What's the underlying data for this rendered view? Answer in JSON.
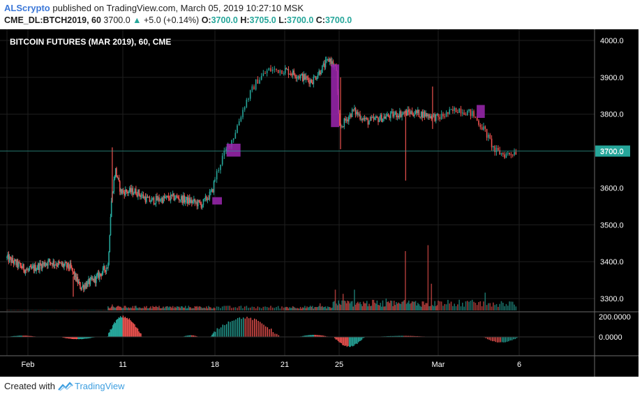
{
  "header": {
    "author": "ALScrypto",
    "published_text": "published on TradingView.com, March 05, 2019 10:27:10 MSK",
    "symbol": "CME_DL:BTCH2019, 60",
    "last": "3700.0",
    "change_arrow": "▲",
    "change": "+5.0 (+0.14%)",
    "o_label": "O:",
    "o": "3700.0",
    "h_label": "H:",
    "h": "3705.0",
    "l_label": "L:",
    "l": "3700.0",
    "c_label": "C:",
    "c": "3700.0"
  },
  "footer": {
    "created_with": "Created with",
    "brand": "TradingView"
  },
  "colors": {
    "background": "#000000",
    "grid": "#1f1f1f",
    "up": "#26a69a",
    "down": "#ef5350",
    "box": "#9c27b0",
    "last_price": "#26a69a",
    "text": "#ffffff"
  },
  "chart_data": {
    "type": "candlestick",
    "title": "BITCOIN FUTURES (MAR 2019), 60, CME",
    "x_tick_labels": [
      "Feb",
      "11",
      "18",
      "21",
      "25",
      "Mar",
      "6"
    ],
    "y_tick_labels": [
      "4000.0",
      "3900.0",
      "3800.0",
      "3700.0",
      "3600.0",
      "3500.0",
      "3400.0",
      "3300.0"
    ],
    "ylim": [
      3270,
      4020
    ],
    "last_price_label": "3700.0",
    "price_path": [
      {
        "x": 0.0,
        "y": 3410
      },
      {
        "x": 2.0,
        "y": 3375
      },
      {
        "x": 4.0,
        "y": 3400
      },
      {
        "x": 6.0,
        "y": 3385
      },
      {
        "x": 7.0,
        "y": 3330
      },
      {
        "x": 8.5,
        "y": 3355
      },
      {
        "x": 9.6,
        "y": 3390
      },
      {
        "x": 9.9,
        "y": 3560
      },
      {
        "x": 10.3,
        "y": 3650
      },
      {
        "x": 10.8,
        "y": 3590
      },
      {
        "x": 12.0,
        "y": 3590
      },
      {
        "x": 13.0,
        "y": 3565
      },
      {
        "x": 15.0,
        "y": 3575
      },
      {
        "x": 17.0,
        "y": 3555
      },
      {
        "x": 17.8,
        "y": 3590
      },
      {
        "x": 18.3,
        "y": 3680
      },
      {
        "x": 18.8,
        "y": 3740
      },
      {
        "x": 19.3,
        "y": 3830
      },
      {
        "x": 19.8,
        "y": 3890
      },
      {
        "x": 20.3,
        "y": 3920
      },
      {
        "x": 21.0,
        "y": 3920
      },
      {
        "x": 22.0,
        "y": 3905
      },
      {
        "x": 23.0,
        "y": 3890
      },
      {
        "x": 24.3,
        "y": 3950
      },
      {
        "x": 24.8,
        "y": 3920
      },
      {
        "x": 25.0,
        "y": 3760
      },
      {
        "x": 25.6,
        "y": 3790
      },
      {
        "x": 26.0,
        "y": 3810
      },
      {
        "x": 27.0,
        "y": 3780
      },
      {
        "x": 28.0,
        "y": 3790
      },
      {
        "x": 29.0,
        "y": 3800
      },
      {
        "x": 30.0,
        "y": 3805
      },
      {
        "x": 31.0,
        "y": 3800
      },
      {
        "x": 32.0,
        "y": 3790
      },
      {
        "x": 33.0,
        "y": 3815
      },
      {
        "x": 33.7,
        "y": 3800
      },
      {
        "x": 34.3,
        "y": 3755
      },
      {
        "x": 34.8,
        "y": 3700
      },
      {
        "x": 35.3,
        "y": 3690
      },
      {
        "x": 35.9,
        "y": 3700
      }
    ],
    "spikes": [
      {
        "x": 10.0,
        "high": 3710,
        "low": 3560
      },
      {
        "x": 29.7,
        "high": 3810,
        "low": 3620
      },
      {
        "x": 31.6,
        "high": 3875,
        "low": 3760
      },
      {
        "x": 25.1,
        "high": 3900,
        "low": 3705
      },
      {
        "x": 6.3,
        "high": 3360,
        "low": 3305
      }
    ],
    "boxes": [
      {
        "x0": 17.8,
        "x1": 18.3,
        "y0": 3555,
        "y1": 3575
      },
      {
        "x0": 18.5,
        "x1": 19.1,
        "y0": 3685,
        "y1": 3720
      },
      {
        "x0": 24.4,
        "x1": 25.0,
        "y0": 3765,
        "y1": 3935
      },
      {
        "x0": 33.9,
        "x1": 34.3,
        "y0": 3790,
        "y1": 3825
      }
    ],
    "volume": {
      "spikes": [
        {
          "x": 10.0,
          "v": 0.1
        },
        {
          "x": 24.7,
          "v": 0.35
        },
        {
          "x": 25.3,
          "v": 0.28
        },
        {
          "x": 26.1,
          "v": 0.35
        },
        {
          "x": 29.7,
          "v": 1.0
        },
        {
          "x": 31.3,
          "v": 1.1
        },
        {
          "x": 31.5,
          "v": 0.45
        },
        {
          "x": 34.3,
          "v": 0.3
        },
        {
          "x": 33.0,
          "v": 0.18
        },
        {
          "x": 28.3,
          "v": 0.2
        },
        {
          "x": 23.6,
          "v": 0.12
        }
      ]
    },
    "oscillator": {
      "y_tick_labels": [
        "200.0000",
        "0.0000"
      ],
      "ylim": [
        -130,
        230
      ],
      "waves": [
        {
          "x0": 0.0,
          "x1": 3.0,
          "amp": 12
        },
        {
          "x0": 5.0,
          "x1": 8.5,
          "amp": -22
        },
        {
          "x0": 9.5,
          "x1": 12.5,
          "amp": 200
        },
        {
          "x0": 15.5,
          "x1": 16.8,
          "amp": 16
        },
        {
          "x0": 17.7,
          "x1": 20.8,
          "amp": 190
        },
        {
          "x0": 22.0,
          "x1": 24.3,
          "amp": 20
        },
        {
          "x0": 24.6,
          "x1": 26.8,
          "amp": -95
        },
        {
          "x0": 27.5,
          "x1": 31.5,
          "amp": 10
        },
        {
          "x0": 34.2,
          "x1": 36.0,
          "amp": -55
        }
      ]
    }
  }
}
